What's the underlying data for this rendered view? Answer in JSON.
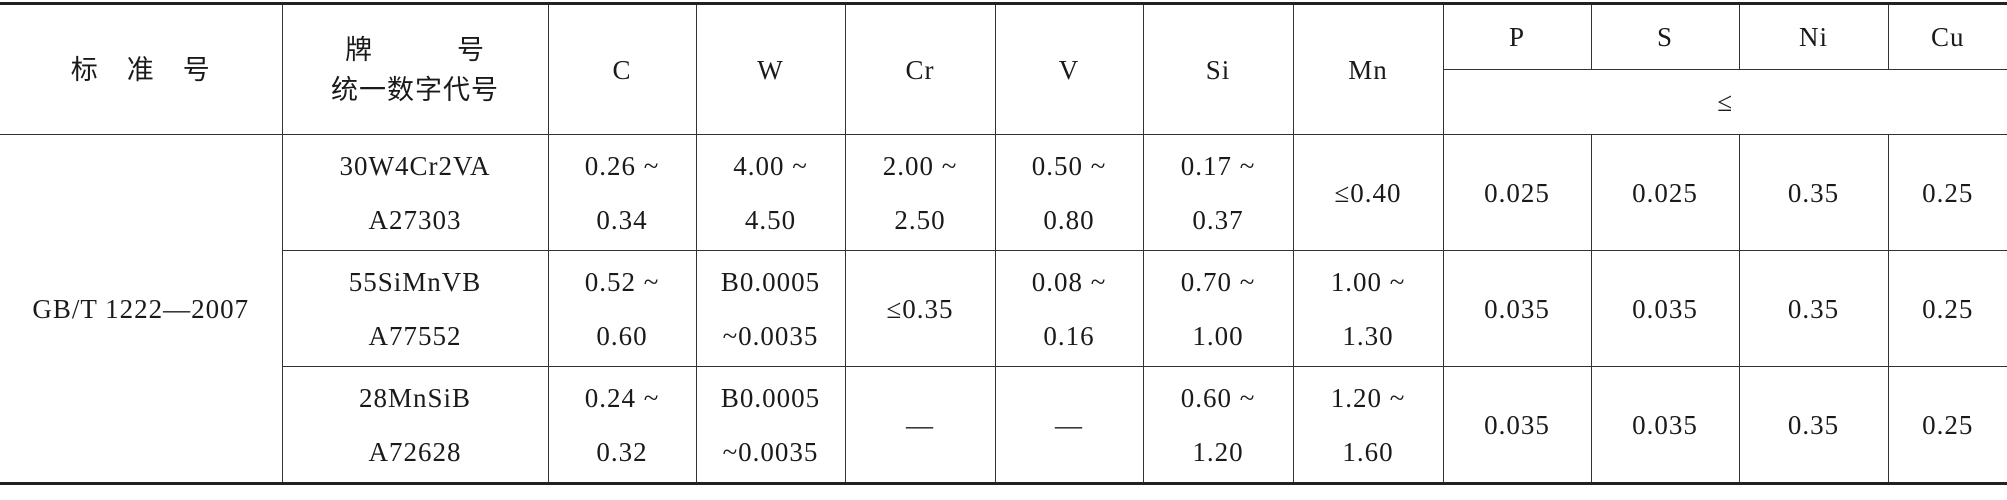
{
  "table": {
    "header": {
      "standard": "标　准　号",
      "grade": [
        "牌　　　号",
        "统一数字代号"
      ],
      "elements": [
        "C",
        "W",
        "Cr",
        "V",
        "Si",
        "Mn",
        "P",
        "S",
        "Ni",
        "Cu"
      ],
      "limit_note": "≤"
    },
    "standard": "GB/T 1222—2007",
    "rows": [
      [
        [
          "30W4Cr2VA",
          "A27303"
        ],
        [
          "0.26 ~",
          "0.34"
        ],
        [
          "4.00 ~",
          "4.50"
        ],
        [
          "2.00 ~",
          "2.50"
        ],
        [
          "0.50 ~",
          "0.80"
        ],
        [
          "0.17 ~",
          "0.37"
        ],
        [
          "≤0.40"
        ],
        [
          "0.025"
        ],
        [
          "0.025"
        ],
        [
          "0.35"
        ],
        [
          "0.25"
        ]
      ],
      [
        [
          "55SiMnVB",
          "A77552"
        ],
        [
          "0.52 ~",
          "0.60"
        ],
        [
          "B0.0005",
          "~0.0035"
        ],
        [
          "≤0.35"
        ],
        [
          "0.08 ~",
          "0.16"
        ],
        [
          "0.70 ~",
          "1.00"
        ],
        [
          "1.00 ~",
          "1.30"
        ],
        [
          "0.035"
        ],
        [
          "0.035"
        ],
        [
          "0.35"
        ],
        [
          "0.25"
        ]
      ],
      [
        [
          "28MnSiB",
          "A72628"
        ],
        [
          "0.24 ~",
          "0.32"
        ],
        [
          "B0.0005",
          "~0.0035"
        ],
        [
          "—"
        ],
        [
          "—"
        ],
        [
          "0.60 ~",
          "1.20"
        ],
        [
          "1.20 ~",
          "1.60"
        ],
        [
          "0.035"
        ],
        [
          "0.035"
        ],
        [
          "0.35"
        ],
        [
          "0.25"
        ]
      ]
    ]
  }
}
